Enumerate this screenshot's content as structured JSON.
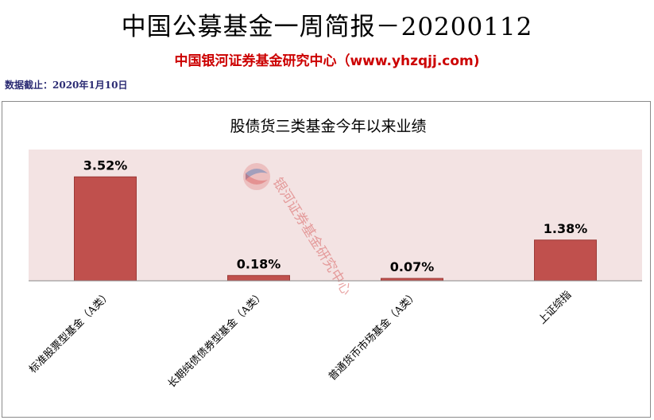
{
  "header": {
    "title": "中国公募基金一周简报－20200112",
    "subtitle": "中国银河证券基金研究中心（www.yhzqjj.com)",
    "as_of": "数据截止：2020年1月10日"
  },
  "watermark": {
    "text": "银河证券基金研究中心"
  },
  "colors": {
    "bar": "#c0504d",
    "bar_stroke": "#9c3a37",
    "plot_bg": "#f3e3e3",
    "axis": "#8a8a8a"
  },
  "chart_data": {
    "type": "bar",
    "title": "股债货三类基金今年以来业绩",
    "categories": [
      "标准股票型基金（A类）",
      "长期纯债债券型基金（A类）",
      "普通货币市场基金（A类）",
      "上证综指"
    ],
    "values": [
      3.52,
      0.18,
      0.07,
      1.38
    ],
    "value_labels": [
      "3.52%",
      "0.18%",
      "0.07%",
      "1.38%"
    ],
    "ylim": [
      0,
      4
    ],
    "grid": false,
    "legend": "none"
  }
}
